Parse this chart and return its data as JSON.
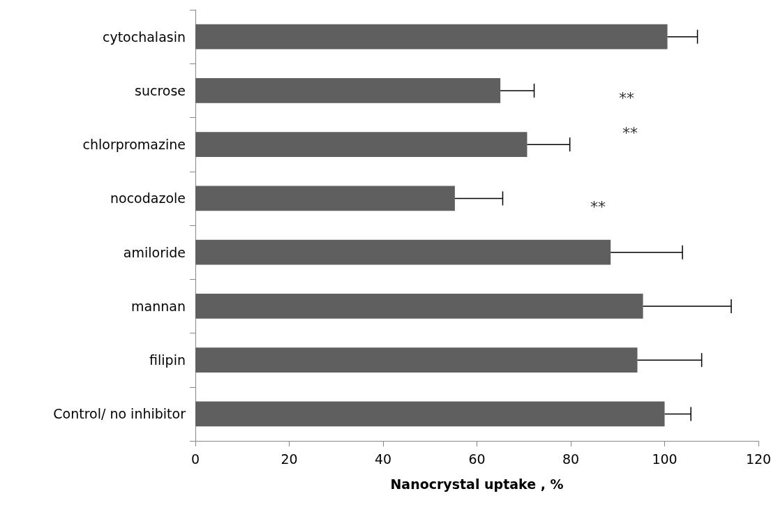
{
  "chart_data": {
    "type": "bar",
    "orientation": "horizontal",
    "xlabel": "Nanocrystal uptake , %",
    "categories": [
      "cytochalasin",
      "sucrose",
      "chlorpromazine",
      "nocodazole",
      "amiloride",
      "mannan",
      "filipin",
      "Control/ no inhibitor"
    ],
    "values": [
      100.6,
      65.0,
      70.7,
      55.3,
      88.5,
      95.4,
      94.2,
      100
    ],
    "errors": [
      [
        100.6,
        107
      ],
      [
        65.0,
        72.2
      ],
      [
        70.7,
        79.8
      ],
      [
        55.3,
        65.5
      ],
      [
        88.5,
        103.8
      ],
      [
        95.4,
        114.2
      ],
      [
        94.2,
        107.9
      ],
      [
        100,
        105.6
      ]
    ],
    "color": "#5f5f5f",
    "xlim": [
      0,
      120
    ],
    "xticks": [
      0,
      20,
      40,
      60,
      80,
      100,
      120
    ],
    "grid": false,
    "annotations": [
      "**",
      "**",
      "**"
    ]
  }
}
